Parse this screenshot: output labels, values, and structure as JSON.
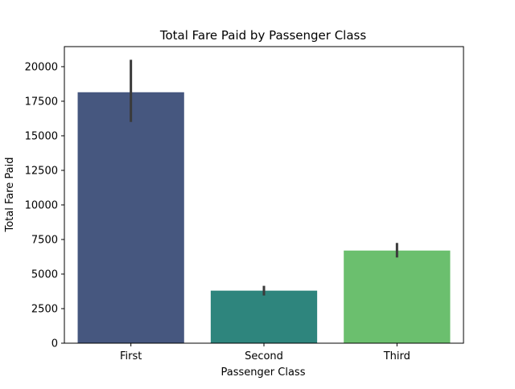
{
  "chart_data": {
    "type": "bar",
    "title": "Total Fare Paid by Passenger Class",
    "xlabel": "Passenger Class",
    "ylabel": "Total Fare Paid",
    "categories": [
      "First",
      "Second",
      "Third"
    ],
    "values": [
      18150,
      3800,
      6700
    ],
    "error_low": [
      16000,
      3450,
      6200
    ],
    "error_high": [
      20500,
      4150,
      7250
    ],
    "colors": [
      "#46577f",
      "#2e857d",
      "#6bbf6e"
    ],
    "error_color": "#3a3a3a",
    "ylim": [
      0,
      21450
    ],
    "yticks": [
      0,
      2500,
      5000,
      7500,
      10000,
      12500,
      15000,
      17500,
      20000
    ],
    "ytick_labels": [
      "0",
      "2500",
      "5000",
      "7500",
      "10000",
      "12500",
      "15000",
      "17500",
      "20000"
    ],
    "grid": false,
    "legend": "none"
  }
}
